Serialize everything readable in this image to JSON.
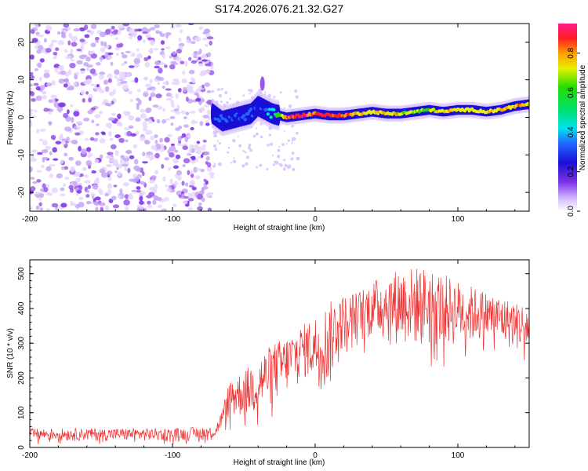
{
  "title": "S174.2026.076.21.32.G27",
  "chart_data": [
    {
      "type": "heatmap",
      "title": "S174.2026.076.21.32.G27",
      "xlabel": "Height of straight line (km)",
      "ylabel": "Frequency (Hz)",
      "xlim": [
        -200,
        150
      ],
      "ylim": [
        -25,
        25
      ],
      "xticks": [
        -200,
        -100,
        0,
        100
      ],
      "xtick_labels": [
        "-200",
        "-100",
        "0",
        "100"
      ],
      "yticks": [
        -20,
        -10,
        0,
        10,
        20
      ],
      "ytick_labels": [
        "-20",
        "-10",
        "0",
        "10",
        "20"
      ],
      "colorbar": {
        "label": "Normalized spectral amplitude",
        "range": [
          0,
          0.95
        ],
        "ticks": [
          0,
          0.2,
          0.4,
          0.6,
          0.8
        ],
        "tick_labels": [
          "0.0",
          "0.2",
          "0.4",
          "0.6",
          "0.8"
        ]
      },
      "noise_region_x": [
        -200,
        -72
      ],
      "ridge": {
        "x": [
          -72,
          -65,
          -55,
          -45,
          -40,
          -35,
          -30,
          -25,
          -20,
          -10,
          0,
          10,
          20,
          30,
          40,
          50,
          60,
          70,
          80,
          90,
          100,
          110,
          120,
          130,
          140,
          150
        ],
        "freq": [
          1,
          -1,
          0,
          1,
          3,
          2,
          1,
          0.5,
          0,
          0.5,
          1,
          0.5,
          0.5,
          1,
          1.5,
          1,
          1,
          1.5,
          2,
          1.5,
          2,
          2,
          1.5,
          2,
          3,
          3.5
        ],
        "amplitude": [
          0.3,
          0.3,
          0.3,
          0.3,
          0.25,
          0.3,
          0.45,
          0.6,
          0.85,
          0.9,
          0.85,
          0.9,
          0.85,
          0.75,
          0.7,
          0.75,
          0.7,
          0.65,
          0.65,
          0.75,
          0.7,
          0.7,
          0.75,
          0.75,
          0.8,
          0.75
        ]
      }
    },
    {
      "type": "line",
      "xlabel": "Height of straight line (km)",
      "ylabel": "SNR (10 * v/v)",
      "xlim": [
        -200,
        150
      ],
      "ylim": [
        0,
        540
      ],
      "xticks": [
        -200,
        -100,
        0,
        100
      ],
      "xtick_labels": [
        "-200",
        "-100",
        "0",
        "100"
      ],
      "yticks": [
        0,
        100,
        200,
        300,
        400,
        500
      ],
      "ytick_labels": [
        "0",
        "100",
        "200",
        "300",
        "400",
        "500"
      ],
      "series": [
        {
          "name": "SNR",
          "color": "#ee3333",
          "envelope_x": [
            -200,
            -150,
            -100,
            -80,
            -70,
            -65,
            -60,
            -50,
            -40,
            -30,
            -20,
            -10,
            0,
            10,
            15,
            20,
            30,
            40,
            60,
            80,
            100,
            120,
            140,
            150
          ],
          "envelope_low": [
            18,
            18,
            18,
            20,
            25,
            60,
            80,
            85,
            90,
            120,
            150,
            200,
            180,
            160,
            250,
            280,
            300,
            310,
            290,
            280,
            290,
            300,
            280,
            270
          ],
          "envelope_high": [
            55,
            55,
            55,
            60,
            60,
            110,
            200,
            220,
            260,
            300,
            320,
            350,
            380,
            420,
            430,
            440,
            450,
            480,
            520,
            520,
            480,
            450,
            420,
            410
          ]
        }
      ]
    }
  ]
}
